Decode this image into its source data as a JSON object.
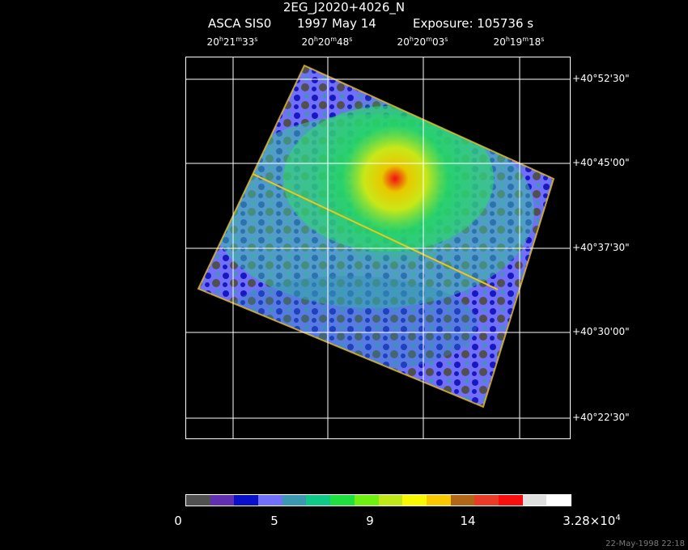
{
  "header": {
    "object": "2EG_J2020+4026_N",
    "instrument": "ASCA SIS0",
    "date": "1997 May 14",
    "exposure": "Exposure: 105736 s"
  },
  "ra_ticks": [
    {
      "h": "20",
      "m": "21",
      "s": "33"
    },
    {
      "h": "20",
      "m": "20",
      "s": "48"
    },
    {
      "h": "20",
      "m": "20",
      "s": "03"
    },
    {
      "h": "20",
      "m": "19",
      "s": "18"
    }
  ],
  "dec_ticks": [
    "+40°52'30\"",
    "+40°45'00\"",
    "+40°37'30\"",
    "+40°30'00\"",
    "+40°22'30\""
  ],
  "colorbar": {
    "colors": [
      "#505050",
      "#6030b0",
      "#0a10c8",
      "#7070f8",
      "#3c98b0",
      "#10c888",
      "#20e040",
      "#70f010",
      "#c0e818",
      "#f8f800",
      "#f8c800",
      "#b06818",
      "#e83c28",
      "#f81010",
      "#e0e0e0",
      "#ffffff"
    ],
    "labels": [
      {
        "text": "0"
      },
      {
        "text": "5"
      },
      {
        "text": "9"
      },
      {
        "text": "14"
      },
      {
        "text": "3.28×10",
        "sup": "4"
      }
    ]
  },
  "footer": {
    "timestamp": "22-May-1998 22:18"
  }
}
